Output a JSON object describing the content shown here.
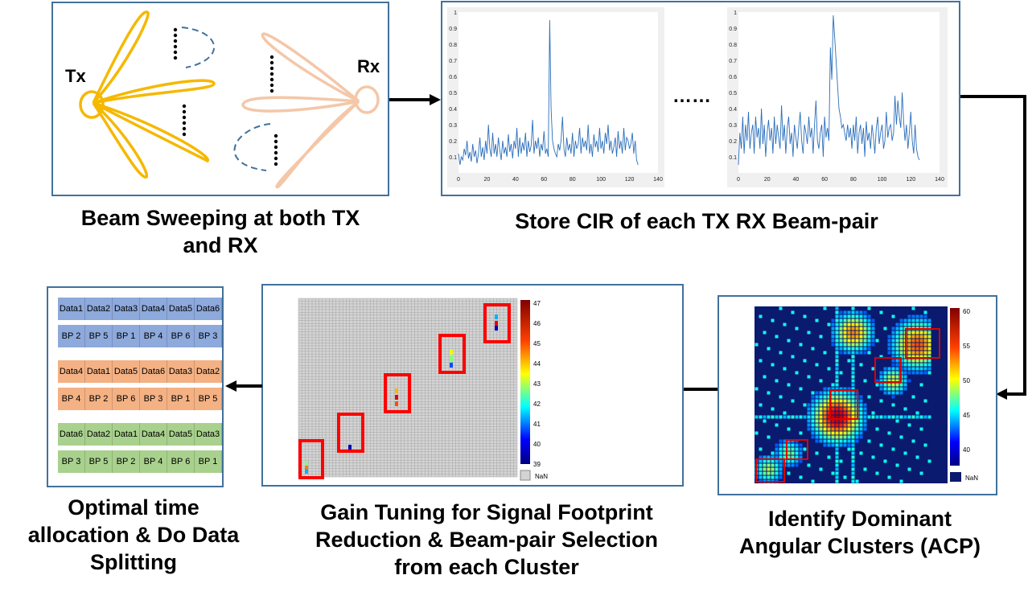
{
  "panel1": {
    "tx_label": "Tx",
    "rx_label": "Rx",
    "caption_line1": "Beam Sweeping at both TX",
    "caption_line2": "and RX"
  },
  "panel2": {
    "caption": "Store CIR of each TX RX Beam-pair",
    "ellipsis": "……",
    "plot": {
      "x_ticks": [
        "0",
        "20",
        "40",
        "60",
        "80",
        "100",
        "120",
        "140"
      ],
      "y_ticks": [
        "0.1",
        "0.2",
        "0.3",
        "0.4",
        "0.5",
        "0.6",
        "0.7",
        "0.8",
        "0.9",
        "1"
      ],
      "plot1_cir": [
        0.12,
        0.05,
        0.1,
        0.08,
        0.15,
        0.11,
        0.2,
        0.09,
        0.13,
        0.07,
        0.18,
        0.1,
        0.14,
        0.06,
        0.12,
        0.22,
        0.1,
        0.16,
        0.08,
        0.2,
        0.12,
        0.3,
        0.15,
        0.1,
        0.25,
        0.12,
        0.18,
        0.1,
        0.22,
        0.14,
        0.08,
        0.2,
        0.12,
        0.16,
        0.1,
        0.24,
        0.13,
        0.18,
        0.09,
        0.2,
        0.15,
        0.28,
        0.1,
        0.22,
        0.12,
        0.19,
        0.14,
        0.25,
        0.1,
        0.2,
        0.13,
        0.17,
        0.33,
        0.12,
        0.2,
        0.15,
        0.22,
        0.1,
        0.18,
        0.14,
        0.26,
        0.12,
        0.15,
        0.1,
        0.95,
        0.4,
        0.2,
        0.15,
        0.12,
        0.1,
        0.18,
        0.14,
        0.2,
        0.35,
        0.15,
        0.1,
        0.22,
        0.14,
        0.18,
        0.12,
        0.25,
        0.1,
        0.2,
        0.15,
        0.18,
        0.28,
        0.12,
        0.22,
        0.16,
        0.2,
        0.14,
        0.3,
        0.12,
        0.18,
        0.1,
        0.24,
        0.16,
        0.2,
        0.13,
        0.28,
        0.15,
        0.2,
        0.12,
        0.25,
        0.18,
        0.3,
        0.14,
        0.2,
        0.12,
        0.16,
        0.22,
        0.1,
        0.26,
        0.15,
        0.2,
        0.12,
        0.28,
        0.14,
        0.22,
        0.2,
        0.15,
        0.18,
        0.25,
        0.12,
        0.2,
        0.08,
        0.05
      ],
      "plot2_cir": [
        0.05,
        0.25,
        0.15,
        0.35,
        0.12,
        0.3,
        0.2,
        0.38,
        0.15,
        0.25,
        0.3,
        0.12,
        0.35,
        0.22,
        0.28,
        0.15,
        0.4,
        0.18,
        0.3,
        0.1,
        0.25,
        0.33,
        0.2,
        0.28,
        0.12,
        0.35,
        0.18,
        0.3,
        0.22,
        0.15,
        0.42,
        0.2,
        0.3,
        0.12,
        0.28,
        0.35,
        0.18,
        0.25,
        0.1,
        0.3,
        0.22,
        0.15,
        0.28,
        0.38,
        0.2,
        0.12,
        0.3,
        0.25,
        0.18,
        0.35,
        0.22,
        0.28,
        0.12,
        0.3,
        0.45,
        0.2,
        0.15,
        0.25,
        0.3,
        0.1,
        0.35,
        0.22,
        0.28,
        0.2,
        0.78,
        0.58,
        0.98,
        0.85,
        0.7,
        0.55,
        0.4,
        0.35,
        0.28,
        0.3,
        0.25,
        0.2,
        0.3,
        0.22,
        0.28,
        0.15,
        0.3,
        0.2,
        0.35,
        0.12,
        0.25,
        0.3,
        0.18,
        0.28,
        0.1,
        0.32,
        0.2,
        0.25,
        0.15,
        0.3,
        0.22,
        0.12,
        0.28,
        0.35,
        0.18,
        0.25,
        0.3,
        0.15,
        0.2,
        0.38,
        0.22,
        0.28,
        0.3,
        0.2,
        0.25,
        0.48,
        0.3,
        0.45,
        0.35,
        0.28,
        0.5,
        0.32,
        0.2,
        0.3,
        0.15,
        0.25,
        0.38,
        0.2,
        0.12,
        0.3,
        0.15,
        0.1,
        0.08
      ]
    }
  },
  "panel3": {
    "caption_line1": "Identify Dominant",
    "caption_line2": "Angular Clusters (ACP)",
    "colorbar_ticks": [
      "60",
      "55",
      "50",
      "45",
      "40"
    ],
    "nan_label": "NaN"
  },
  "panel4": {
    "caption_line1": "Gain Tuning for Signal Footprint",
    "caption_line2": "Reduction & Beam-pair Selection",
    "caption_line3": "from each Cluster",
    "colorbar_ticks": [
      "47",
      "46",
      "45",
      "44",
      "43",
      "42",
      "41",
      "40",
      "39"
    ],
    "nan_label": "NaN"
  },
  "panel5": {
    "caption_line1": "Optimal time",
    "caption_line2": "allocation & Do Data",
    "caption_line3": "Splitting",
    "groups": [
      {
        "color": "#8ea9db",
        "data_row": [
          "Data1",
          "Data2",
          "Data3",
          "Data4",
          "Data5",
          "Data6"
        ],
        "bp_row": [
          "BP 2",
          "BP 5",
          "BP 1",
          "BP 4",
          "BP 6",
          "BP 3"
        ]
      },
      {
        "color": "#f4b183",
        "data_row": [
          "Data4",
          "Data1",
          "Data5",
          "Data6",
          "Data3",
          "Data2"
        ],
        "bp_row": [
          "BP 4",
          "BP 2",
          "BP 6",
          "BP 3",
          "BP 1",
          "BP 5"
        ]
      },
      {
        "color": "#a9d18e",
        "data_row": [
          "Data6",
          "Data2",
          "Data1",
          "Data4",
          "Data5",
          "Data3"
        ],
        "bp_row": [
          "BP 3",
          "BP 5",
          "BP 2",
          "BP 4",
          "BP 6",
          "BP 1"
        ]
      }
    ]
  }
}
